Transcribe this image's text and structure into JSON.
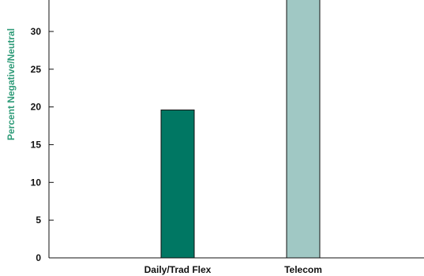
{
  "chart_data": {
    "type": "bar",
    "title": "",
    "xlabel": "",
    "ylabel": "Percent Negative/Neutral",
    "ylabel_color": "#2e9b78",
    "categories": [
      "Daily/Trad Flex",
      "Telecom"
    ],
    "values": [
      19.6,
      35
    ],
    "bar_colors": [
      "#007763",
      "#a0c8c4"
    ],
    "ylim": [
      0,
      35
    ],
    "yticks": [
      "0",
      "5",
      "10",
      "15",
      "20",
      "25",
      "30",
      "35"
    ],
    "grid": false,
    "legend": "none"
  }
}
